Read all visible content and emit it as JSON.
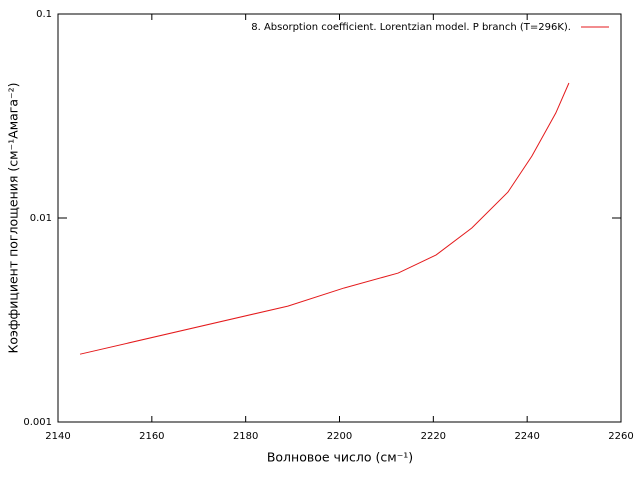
{
  "chart_data": {
    "type": "line",
    "log_y": true,
    "x_label": "Волновое число (см⁻¹)",
    "y_label": "Коэффициент поглощения (см⁻¹Амага⁻²)",
    "xlim": [
      2140,
      2260
    ],
    "xticks": [
      2140,
      2160,
      2180,
      2200,
      2220,
      2240,
      2260
    ],
    "ylim": [
      0.001,
      0.1
    ],
    "yticks": [
      0.001,
      0.01,
      0.1
    ],
    "legend": "top-right",
    "series": [
      {
        "name": "8. Absorption coefficient. Lorentzian model. P branch (T=296K).",
        "color": "#e41a1c",
        "x": [
          2144.7,
          2189,
          2201,
          2212.5,
          2220.6,
          2228.2,
          2235.9,
          2241,
          2246.1,
          2248.9
        ],
        "values": [
          0.00215,
          0.0037,
          0.00454,
          0.00537,
          0.00659,
          0.00893,
          0.0134,
          0.0201,
          0.0327,
          0.0459
        ]
      }
    ]
  }
}
